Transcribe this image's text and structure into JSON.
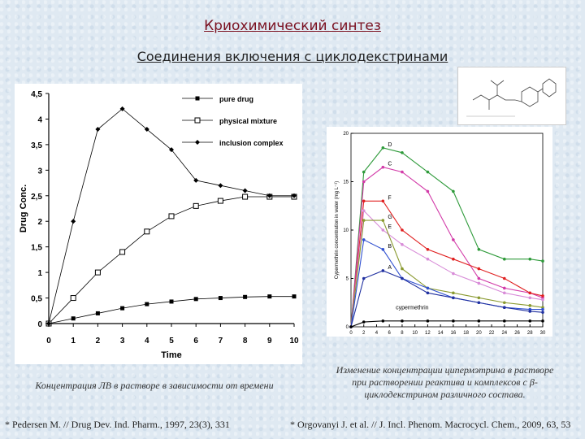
{
  "header": {
    "title": "Криохимический синтез",
    "subtitle": "Соединения включения с циклодекстринами"
  },
  "captions": {
    "left": "Концентрация ЛВ в растворе в зависимости от времени",
    "right": "Изменение концентрации ципермэтрина в растворе при растворении реактива и комплексов с β-циклодекстрином различного состава."
  },
  "references": {
    "left": "* Pedersen M. // Drug Dev. Ind. Pharm., 1997, 23(3), 331",
    "right": "* Orgovanyi J. et al. // J. Incl. Phenom. Macrocycl. Chem., 2009, 63, 53"
  },
  "chart_data": [
    {
      "type": "line",
      "xlabel": "Time",
      "ylabel": "Drug Conc.",
      "xlim": [
        0,
        10
      ],
      "ylim": [
        0,
        4.5
      ],
      "xticks": [
        0,
        1,
        2,
        3,
        4,
        5,
        6,
        7,
        8,
        9,
        10
      ],
      "yticks": [
        0,
        0.5,
        1,
        1.5,
        2,
        2.5,
        3,
        3.5,
        4,
        4.5
      ],
      "ytick_labels": [
        "0",
        "0,5",
        "1",
        "1,5",
        "2",
        "2,5",
        "3",
        "3,5",
        "4",
        "4,5"
      ],
      "legend_position": "top-right",
      "series": [
        {
          "name": "pure drug",
          "marker": "filled-square",
          "x": [
            0,
            1,
            2,
            3,
            4,
            5,
            6,
            7,
            8,
            9,
            10
          ],
          "y": [
            0,
            0.1,
            0.2,
            0.3,
            0.38,
            0.43,
            0.48,
            0.5,
            0.52,
            0.53,
            0.53
          ]
        },
        {
          "name": "physical mixture",
          "marker": "open-square",
          "x": [
            0,
            1,
            2,
            3,
            4,
            5,
            6,
            7,
            8,
            9,
            10
          ],
          "y": [
            0,
            0.5,
            1.0,
            1.4,
            1.8,
            2.1,
            2.3,
            2.4,
            2.48,
            2.48,
            2.48
          ]
        },
        {
          "name": "inclusion complex",
          "marker": "filled-diamond",
          "x": [
            0,
            1,
            2,
            3,
            4,
            5,
            6,
            7,
            8,
            9,
            10
          ],
          "y": [
            0,
            2.0,
            3.8,
            4.2,
            3.8,
            3.4,
            2.8,
            2.7,
            2.6,
            2.5,
            2.5
          ]
        }
      ]
    },
    {
      "type": "line",
      "xlabel": "Time (min)",
      "ylabel": "Cypermethrin concentration in water (mg L⁻¹)",
      "xlim": [
        0,
        30
      ],
      "ylim": [
        0,
        20
      ],
      "xticks": [
        0,
        2,
        4,
        6,
        8,
        10,
        12,
        14,
        16,
        18,
        20,
        22,
        24,
        26,
        28,
        30
      ],
      "yticks": [
        0,
        5,
        10,
        15,
        20
      ],
      "annotation": "cypermethrin",
      "series": [
        {
          "name": "D",
          "color": "#2e9a3a",
          "x": [
            0,
            2,
            5,
            8,
            12,
            16,
            20,
            24,
            28,
            30
          ],
          "y": [
            0,
            16,
            18.5,
            18,
            16,
            14,
            8,
            7,
            7,
            6.8
          ]
        },
        {
          "name": "C",
          "color": "#d23aa8",
          "x": [
            0,
            2,
            5,
            8,
            12,
            16,
            20,
            24,
            28,
            30
          ],
          "y": [
            0,
            15,
            16.5,
            16,
            14,
            9,
            5,
            4,
            3.5,
            3
          ]
        },
        {
          "name": "F",
          "color": "#e02020",
          "x": [
            0,
            2,
            5,
            8,
            12,
            16,
            20,
            24,
            28,
            30
          ],
          "y": [
            0,
            13,
            13,
            10,
            8,
            7,
            6,
            5,
            3.5,
            3.2
          ]
        },
        {
          "name": "E",
          "color": "#d88cd8",
          "x": [
            0,
            2,
            5,
            8,
            12,
            16,
            20,
            24,
            28,
            30
          ],
          "y": [
            0,
            12,
            10,
            8.5,
            7,
            5.5,
            4.5,
            3.5,
            3,
            2.8
          ]
        },
        {
          "name": "G",
          "color": "#8a9a30",
          "x": [
            0,
            2,
            5,
            8,
            12,
            16,
            20,
            24,
            28,
            30
          ],
          "y": [
            0,
            11,
            11,
            6,
            4,
            3.5,
            3,
            2.5,
            2.2,
            2
          ]
        },
        {
          "name": "B",
          "color": "#3050d0",
          "x": [
            0,
            2,
            5,
            8,
            12,
            16,
            20,
            24,
            28,
            30
          ],
          "y": [
            0,
            9,
            8,
            5,
            4,
            3,
            2.5,
            2,
            1.8,
            1.8
          ]
        },
        {
          "name": "A",
          "color": "#2030a0",
          "x": [
            0,
            2,
            5,
            8,
            12,
            16,
            20,
            24,
            28,
            30
          ],
          "y": [
            0,
            5,
            5.8,
            5,
            3.5,
            3,
            2.5,
            2,
            1.6,
            1.5
          ]
        },
        {
          "name": "cypermethrin",
          "color": "#000000",
          "x": [
            0,
            2,
            5,
            8,
            12,
            16,
            20,
            24,
            28,
            30
          ],
          "y": [
            0,
            0.5,
            0.6,
            0.6,
            0.6,
            0.6,
            0.6,
            0.6,
            0.6,
            0.6
          ]
        }
      ]
    }
  ]
}
